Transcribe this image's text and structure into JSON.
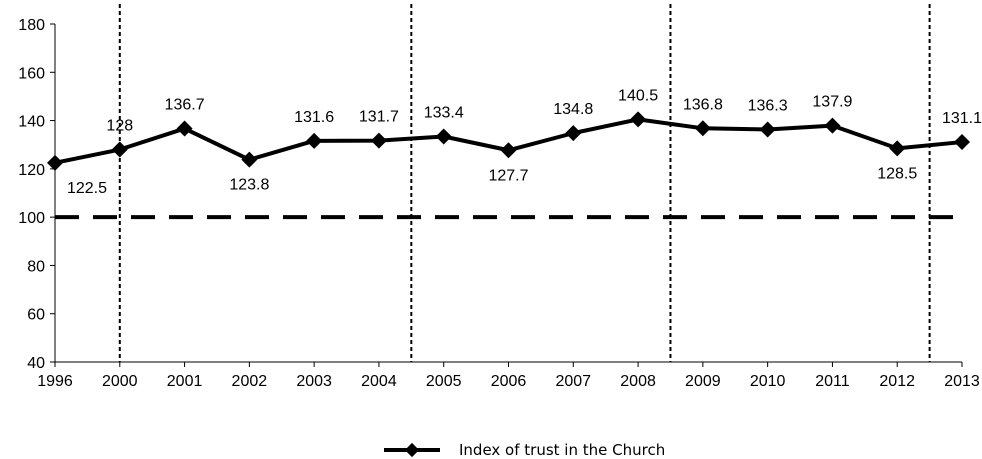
{
  "chart_data": {
    "type": "line",
    "categories": [
      "1996",
      "2000",
      "2001",
      "2002",
      "2003",
      "2004",
      "2005",
      "2006",
      "2007",
      "2008",
      "2009",
      "2010",
      "2011",
      "2012",
      "2013"
    ],
    "series": [
      {
        "name": "Index of trust in the Church",
        "values": [
          122.5,
          128,
          136.7,
          123.8,
          131.6,
          131.7,
          133.4,
          127.7,
          134.8,
          140.5,
          136.8,
          136.3,
          137.9,
          128.5,
          131.1
        ],
        "labels": [
          "122.5",
          "128",
          "136.7",
          "123.8",
          "131.6",
          "131.7",
          "133.4",
          "127.7",
          "134.8",
          "140.5",
          "136.8",
          "136.3",
          "137.9",
          "128.5",
          "131.1"
        ],
        "color": "#000000",
        "marker": "diamond"
      }
    ],
    "title": "",
    "xlabel": "",
    "ylabel": "",
    "ylim": [
      40,
      180
    ],
    "yticks": [
      "40",
      "60",
      "80",
      "100",
      "120",
      "140",
      "160",
      "180"
    ],
    "reference_line": {
      "value": 100,
      "style": "dashed"
    },
    "period_separators": [
      "between 1996 and 2000",
      "between 2004 and 2005",
      "between 2008 and 2009",
      "between 2012 and 2013"
    ],
    "grid": false,
    "legend_position": "bottom-center"
  }
}
